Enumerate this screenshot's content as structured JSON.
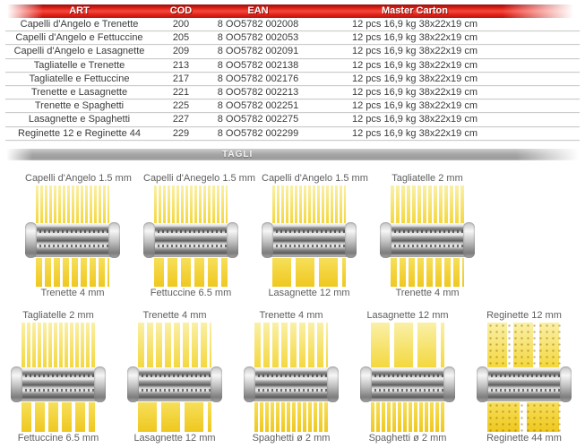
{
  "table": {
    "headers": [
      "ART",
      "COD",
      "EAN",
      "Master Carton"
    ],
    "rows": [
      [
        "Capelli d'Angelo e Trenette",
        "200",
        "8 OO5782 002008",
        "12 pcs 16,9 kg 38x22x19 cm"
      ],
      [
        "Capelli d'Angelo e Fettuccine",
        "205",
        "8 OO5782 002053",
        "12 pcs 16,9 kg 38x22x19 cm"
      ],
      [
        "Capelli d'Angelo e Lasagnette",
        "209",
        "8 OO5782 002091",
        "12 pcs 16,9 kg 38x22x19 cm"
      ],
      [
        "Tagliatelle e Trenette",
        "213",
        "8 OO5782 002138",
        "12 pcs 16,9 kg 38x22x19 cm"
      ],
      [
        "Tagliatelle e Fettuccine",
        "217",
        "8 OO5782 002176",
        "12 pcs 16,9 kg 38x22x19 cm"
      ],
      [
        "Trenette e Lasagnette",
        "221",
        "8 OO5782 002213",
        "12 pcs 16,9 kg 38x22x19 cm"
      ],
      [
        "Trenette e Spaghetti",
        "225",
        "8 OO5782 002251",
        "12 pcs 16,9 kg 38x22x19 cm"
      ],
      [
        "Lasagnette e Spaghetti",
        "227",
        "8 OO5782 002275",
        "12 pcs 16,9 kg 38x22x19 cm"
      ],
      [
        "Reginette 12 e Reginette 44",
        "229",
        "8 OO5782 002299",
        "12 pcs 16,9 kg 38x22x19 cm"
      ]
    ]
  },
  "section": {
    "title": "TAGLI"
  },
  "colors": {
    "header_red": "#e32119",
    "bar_gray": "#a8a8a8",
    "pasta_yellow": "#f5d733",
    "metal_gray": "#bdbdbd"
  },
  "cutters": {
    "row1": [
      {
        "top": {
          "label": "Capelli d'Angelo 1.5 mm",
          "mm": 1.5
        },
        "bottom": {
          "label": "Trenette 4 mm",
          "mm": 4
        }
      },
      {
        "top": {
          "label": "Capelli d'Anegelo 1.5 mm",
          "mm": 1.5
        },
        "bottom": {
          "label": "Fettuccine 6.5 mm",
          "mm": 6.5
        }
      },
      {
        "top": {
          "label": "Capelli d'Angelo 1.5 mm",
          "mm": 1.5
        },
        "bottom": {
          "label": "Lasagnette 12 mm",
          "mm": 12
        }
      },
      {
        "top": {
          "label": "Tagliatelle 2 mm",
          "mm": 2
        },
        "bottom": {
          "label": "Trenette 4 mm",
          "mm": 4
        }
      }
    ],
    "row2": [
      {
        "top": {
          "label": "Tagliatelle 2 mm",
          "mm": 2
        },
        "bottom": {
          "label": "Fettuccine 6.5 mm",
          "mm": 6.5
        }
      },
      {
        "top": {
          "label": "Trenette 4 mm",
          "mm": 4
        },
        "bottom": {
          "label": "Lasagnette 12 mm",
          "mm": 12
        }
      },
      {
        "top": {
          "label": "Trenette 4 mm",
          "mm": 4
        },
        "bottom": {
          "label": "Spaghetti ø 2 mm",
          "mm": 2
        }
      },
      {
        "top": {
          "label": "Lasagnette 12 mm",
          "mm": 12
        },
        "bottom": {
          "label": "Spaghetti ø 2 mm",
          "mm": 2
        }
      },
      {
        "top": {
          "label": "Reginette 12 mm",
          "mm": 12,
          "serrated": true
        },
        "bottom": {
          "label": "Reginette 44 mm",
          "mm": 44,
          "serrated": true
        }
      }
    ]
  }
}
